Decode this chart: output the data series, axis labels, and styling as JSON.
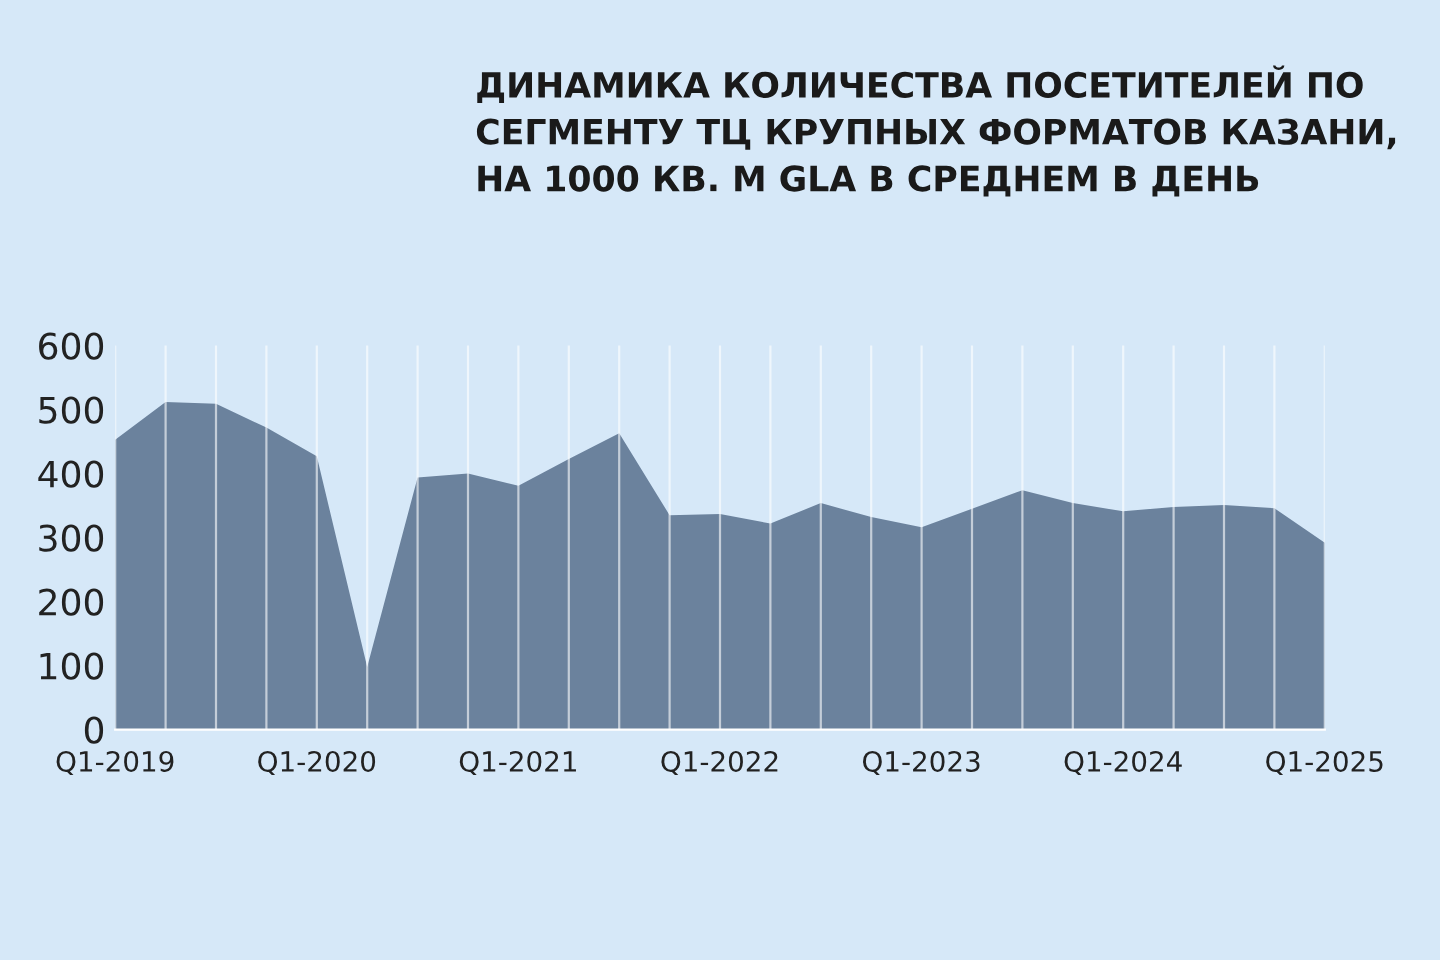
{
  "chart_data": {
    "type": "area",
    "title": "ДИНАМИКА КОЛИЧЕСТВА ПОСЕТИТЕЛЕЙ ПО СЕГМЕНТУ ТЦ КРУПНЫХ ФОРМАТОВ КАЗАНИ, НА 1000 КВ. М GLA В СРЕДНЕМ В ДЕНЬ",
    "categories": [
      "Q1-2019",
      null,
      null,
      null,
      "Q1-2020",
      null,
      null,
      null,
      "Q1-2021",
      null,
      null,
      null,
      "Q1-2022",
      null,
      null,
      null,
      "Q1-2023",
      null,
      null,
      null,
      "Q1-2024",
      null,
      null,
      null,
      "Q1-2025"
    ],
    "series": [
      {
        "color": "#6b829d",
        "values": [
          453,
          512,
          509,
          472,
          427,
          98,
          394,
          400,
          381,
          423,
          463,
          335,
          337,
          322,
          354,
          332,
          316,
          345,
          374,
          354,
          341,
          348,
          351,
          346,
          292
        ]
      }
    ],
    "ylim": [
      0,
      600
    ],
    "yticks": [
      0,
      100,
      200,
      300,
      400,
      500,
      600
    ],
    "grid": "x"
  }
}
